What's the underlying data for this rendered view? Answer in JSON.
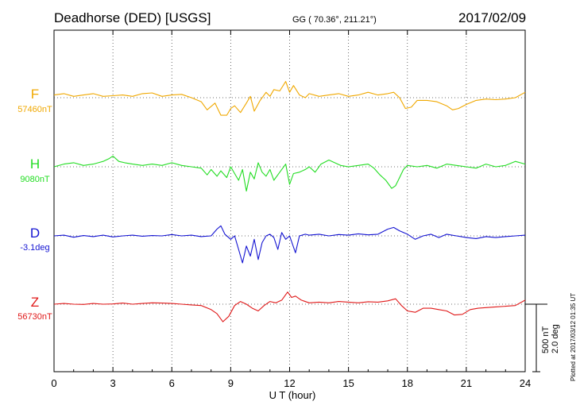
{
  "header": {
    "station": "Deadhorse (DED)  [USGS]",
    "coords": "GG ( 70.36°, 211.21°)",
    "date": "2017/02/09"
  },
  "footer_note": "Plotted at 2017/03/12 01:35 UT",
  "scale_bar": {
    "line1": "500 nT",
    "line2": "2.0 deg"
  },
  "chart_data": {
    "type": "line",
    "title": "Deadhorse (DED)  [USGS]",
    "xlabel": "U T (hour)",
    "ylabel": "",
    "xlim": [
      0,
      24
    ],
    "x_ticks": [
      0,
      3,
      6,
      9,
      12,
      15,
      18,
      21,
      24
    ],
    "grid": true,
    "series": [
      {
        "name": "F",
        "baseline_label": "57460nT",
        "color": "#f0a800",
        "unit": "nT",
        "baseline_value": 57460,
        "points": [
          [
            0,
            57480
          ],
          [
            0.5,
            57490
          ],
          [
            1,
            57470
          ],
          [
            1.5,
            57480
          ],
          [
            2,
            57490
          ],
          [
            2.5,
            57470
          ],
          [
            3,
            57475
          ],
          [
            3.5,
            57480
          ],
          [
            4,
            57470
          ],
          [
            4.5,
            57490
          ],
          [
            5,
            57495
          ],
          [
            5.5,
            57470
          ],
          [
            6,
            57480
          ],
          [
            6.5,
            57485
          ],
          [
            7,
            57460
          ],
          [
            7.5,
            57430
          ],
          [
            7.8,
            57370
          ],
          [
            8.2,
            57420
          ],
          [
            8.5,
            57330
          ],
          [
            8.8,
            57330
          ],
          [
            9,
            57380
          ],
          [
            9.2,
            57400
          ],
          [
            9.5,
            57350
          ],
          [
            9.8,
            57420
          ],
          [
            10,
            57470
          ],
          [
            10.2,
            57360
          ],
          [
            10.5,
            57440
          ],
          [
            10.8,
            57500
          ],
          [
            11,
            57470
          ],
          [
            11.2,
            57520
          ],
          [
            11.5,
            57510
          ],
          [
            11.8,
            57580
          ],
          [
            12,
            57500
          ],
          [
            12.2,
            57550
          ],
          [
            12.5,
            57480
          ],
          [
            12.8,
            57460
          ],
          [
            13,
            57490
          ],
          [
            13.5,
            57470
          ],
          [
            14,
            57480
          ],
          [
            14.5,
            57490
          ],
          [
            15,
            57470
          ],
          [
            15.5,
            57480
          ],
          [
            16,
            57500
          ],
          [
            16.5,
            57480
          ],
          [
            17,
            57490
          ],
          [
            17.3,
            57500
          ],
          [
            17.6,
            57460
          ],
          [
            17.9,
            57380
          ],
          [
            18.2,
            57390
          ],
          [
            18.5,
            57440
          ],
          [
            19,
            57440
          ],
          [
            19.5,
            57430
          ],
          [
            20,
            57400
          ],
          [
            20.3,
            57370
          ],
          [
            20.6,
            57380
          ],
          [
            21,
            57410
          ],
          [
            21.5,
            57440
          ],
          [
            22,
            57450
          ],
          [
            22.5,
            57445
          ],
          [
            23,
            57450
          ],
          [
            23.5,
            57460
          ],
          [
            24,
            57500
          ]
        ]
      },
      {
        "name": "H",
        "baseline_label": "9080nT",
        "color": "#22dd22",
        "unit": "nT",
        "baseline_value": 9080,
        "points": [
          [
            0,
            9080
          ],
          [
            0.5,
            9100
          ],
          [
            1,
            9110
          ],
          [
            1.5,
            9090
          ],
          [
            2,
            9100
          ],
          [
            2.5,
            9120
          ],
          [
            2.8,
            9140
          ],
          [
            3,
            9160
          ],
          [
            3.3,
            9120
          ],
          [
            3.6,
            9110
          ],
          [
            4,
            9100
          ],
          [
            4.5,
            9090
          ],
          [
            5,
            9100
          ],
          [
            5.5,
            9090
          ],
          [
            6,
            9110
          ],
          [
            6.5,
            9090
          ],
          [
            7,
            9080
          ],
          [
            7.5,
            9070
          ],
          [
            7.8,
            9020
          ],
          [
            8,
            9060
          ],
          [
            8.3,
            9010
          ],
          [
            8.5,
            9050
          ],
          [
            8.8,
            9000
          ],
          [
            9,
            9080
          ],
          [
            9.2,
            9030
          ],
          [
            9.4,
            8980
          ],
          [
            9.6,
            9060
          ],
          [
            9.8,
            8900
          ],
          [
            10,
            9040
          ],
          [
            10.2,
            8990
          ],
          [
            10.4,
            9110
          ],
          [
            10.6,
            9040
          ],
          [
            10.8,
            9010
          ],
          [
            11,
            9060
          ],
          [
            11.2,
            8980
          ],
          [
            11.5,
            9040
          ],
          [
            11.8,
            9100
          ],
          [
            12,
            8950
          ],
          [
            12.2,
            9030
          ],
          [
            12.5,
            9040
          ],
          [
            12.8,
            9060
          ],
          [
            13,
            9080
          ],
          [
            13.3,
            9040
          ],
          [
            13.6,
            9100
          ],
          [
            14,
            9130
          ],
          [
            14.3,
            9110
          ],
          [
            14.6,
            9090
          ],
          [
            15,
            9080
          ],
          [
            15.5,
            9090
          ],
          [
            16,
            9100
          ],
          [
            16.3,
            9070
          ],
          [
            16.6,
            9020
          ],
          [
            16.9,
            8980
          ],
          [
            17.2,
            8920
          ],
          [
            17.4,
            8940
          ],
          [
            17.6,
            9000
          ],
          [
            17.8,
            9060
          ],
          [
            18,
            9090
          ],
          [
            18.5,
            9080
          ],
          [
            19,
            9090
          ],
          [
            19.5,
            9070
          ],
          [
            20,
            9100
          ],
          [
            20.5,
            9090
          ],
          [
            21,
            9080
          ],
          [
            21.5,
            9070
          ],
          [
            22,
            9100
          ],
          [
            22.5,
            9080
          ],
          [
            23,
            9090
          ],
          [
            23.5,
            9120
          ],
          [
            24,
            9100
          ]
        ]
      },
      {
        "name": "D",
        "baseline_label": "-3.1deg",
        "color": "#1414d2",
        "unit": "deg",
        "baseline_value": -3.1,
        "points": [
          [
            0,
            -3.1
          ],
          [
            0.5,
            -3.08
          ],
          [
            1,
            -3.14
          ],
          [
            1.5,
            -3.09
          ],
          [
            2,
            -3.12
          ],
          [
            2.5,
            -3.08
          ],
          [
            3,
            -3.13
          ],
          [
            3.5,
            -3.1
          ],
          [
            4,
            -3.08
          ],
          [
            4.5,
            -3.11
          ],
          [
            5,
            -3.09
          ],
          [
            5.5,
            -3.1
          ],
          [
            6,
            -3.06
          ],
          [
            6.5,
            -3.1
          ],
          [
            7,
            -3.08
          ],
          [
            7.5,
            -3.12
          ],
          [
            8,
            -3.1
          ],
          [
            8.3,
            -2.9
          ],
          [
            8.5,
            -2.8
          ],
          [
            8.7,
            -3.05
          ],
          [
            9,
            -3.2
          ],
          [
            9.2,
            -3.1
          ],
          [
            9.4,
            -3.5
          ],
          [
            9.6,
            -3.9
          ],
          [
            9.8,
            -3.4
          ],
          [
            10,
            -3.7
          ],
          [
            10.2,
            -3.2
          ],
          [
            10.4,
            -3.8
          ],
          [
            10.6,
            -3.3
          ],
          [
            10.8,
            -3.1
          ],
          [
            11,
            -3.05
          ],
          [
            11.2,
            -3.15
          ],
          [
            11.4,
            -3.5
          ],
          [
            11.6,
            -3.0
          ],
          [
            11.8,
            -3.2
          ],
          [
            12,
            -3.1
          ],
          [
            12.3,
            -3.6
          ],
          [
            12.5,
            -3.1
          ],
          [
            12.8,
            -3.05
          ],
          [
            13,
            -3.08
          ],
          [
            13.5,
            -3.05
          ],
          [
            14,
            -3.1
          ],
          [
            14.5,
            -3.06
          ],
          [
            15,
            -3.08
          ],
          [
            15.5,
            -3.04
          ],
          [
            16,
            -3.07
          ],
          [
            16.5,
            -3.05
          ],
          [
            17,
            -2.9
          ],
          [
            17.3,
            -2.85
          ],
          [
            17.6,
            -2.95
          ],
          [
            18,
            -3.05
          ],
          [
            18.4,
            -3.2
          ],
          [
            18.8,
            -3.1
          ],
          [
            19.2,
            -3.05
          ],
          [
            19.6,
            -3.15
          ],
          [
            20,
            -3.05
          ],
          [
            20.5,
            -3.1
          ],
          [
            21,
            -3.15
          ],
          [
            21.5,
            -3.18
          ],
          [
            22,
            -3.12
          ],
          [
            22.5,
            -3.15
          ],
          [
            23,
            -3.12
          ],
          [
            23.5,
            -3.1
          ],
          [
            24,
            -3.08
          ]
        ]
      },
      {
        "name": "Z",
        "baseline_label": "56730nT",
        "color": "#e01818",
        "unit": "nT",
        "baseline_value": 56730,
        "points": [
          [
            0,
            56730
          ],
          [
            0.5,
            56735
          ],
          [
            1,
            56730
          ],
          [
            1.5,
            56728
          ],
          [
            2,
            56735
          ],
          [
            2.5,
            56730
          ],
          [
            3,
            56732
          ],
          [
            3.5,
            56738
          ],
          [
            4,
            56730
          ],
          [
            4.5,
            56735
          ],
          [
            5,
            56740
          ],
          [
            5.5,
            56738
          ],
          [
            6,
            56735
          ],
          [
            6.5,
            56730
          ],
          [
            7,
            56725
          ],
          [
            7.5,
            56720
          ],
          [
            8,
            56690
          ],
          [
            8.3,
            56660
          ],
          [
            8.6,
            56600
          ],
          [
            8.9,
            56640
          ],
          [
            9.2,
            56720
          ],
          [
            9.5,
            56750
          ],
          [
            9.8,
            56730
          ],
          [
            10.1,
            56700
          ],
          [
            10.4,
            56680
          ],
          [
            10.7,
            56720
          ],
          [
            11,
            56750
          ],
          [
            11.3,
            56740
          ],
          [
            11.6,
            56760
          ],
          [
            11.9,
            56820
          ],
          [
            12.1,
            56780
          ],
          [
            12.3,
            56790
          ],
          [
            12.6,
            56760
          ],
          [
            13,
            56740
          ],
          [
            13.5,
            56745
          ],
          [
            14,
            56740
          ],
          [
            14.5,
            56750
          ],
          [
            15,
            56745
          ],
          [
            15.5,
            56740
          ],
          [
            16,
            56748
          ],
          [
            16.5,
            56745
          ],
          [
            17,
            56755
          ],
          [
            17.4,
            56770
          ],
          [
            17.7,
            56720
          ],
          [
            18,
            56680
          ],
          [
            18.4,
            56670
          ],
          [
            18.8,
            56700
          ],
          [
            19.2,
            56700
          ],
          [
            19.6,
            56690
          ],
          [
            20,
            56680
          ],
          [
            20.4,
            56650
          ],
          [
            20.8,
            56655
          ],
          [
            21.2,
            56690
          ],
          [
            21.6,
            56700
          ],
          [
            22,
            56705
          ],
          [
            22.5,
            56710
          ],
          [
            23,
            56715
          ],
          [
            23.5,
            56720
          ],
          [
            24,
            56760
          ]
        ]
      }
    ]
  }
}
